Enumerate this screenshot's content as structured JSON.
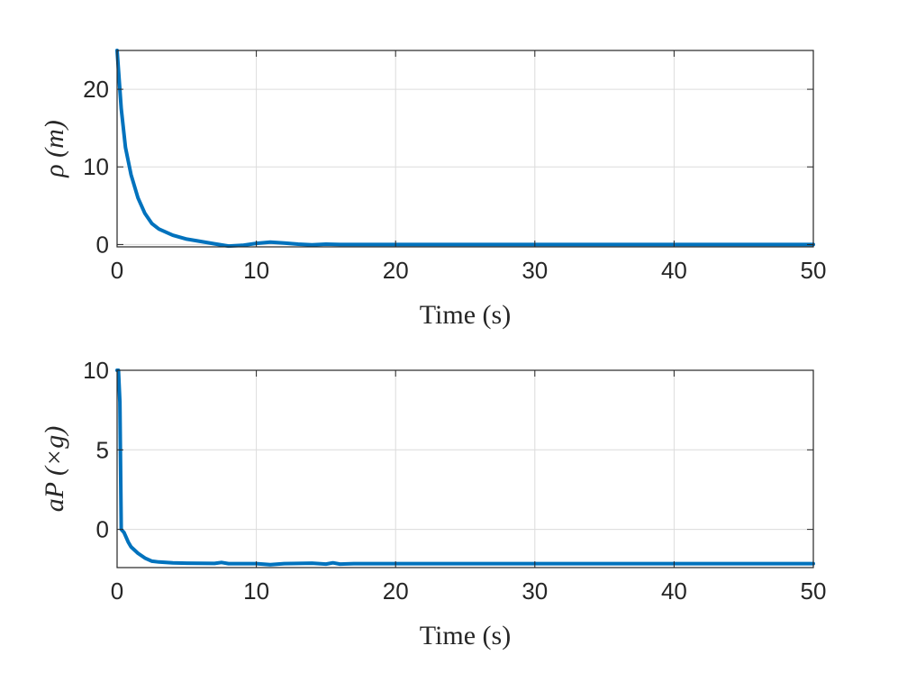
{
  "chart_data": [
    {
      "type": "line",
      "xlabel": "Time (s)",
      "ylabel": "ρ (m)",
      "xlim": [
        0,
        50
      ],
      "ylim": [
        -0.3,
        25
      ],
      "xticks": [
        0,
        10,
        20,
        30,
        40,
        50
      ],
      "yticks": [
        0,
        10,
        20
      ],
      "grid": true,
      "color": "#0072BD",
      "series": [
        {
          "x": [
            0,
            0.3,
            0.6,
            1,
            1.5,
            2,
            2.5,
            3,
            4,
            5,
            6,
            7,
            8,
            9,
            10,
            11,
            12,
            13,
            14,
            15,
            16,
            18,
            20,
            30,
            40,
            50
          ],
          "y": [
            25,
            17.5,
            12.5,
            9,
            6,
            4,
            2.7,
            2,
            1.2,
            0.7,
            0.4,
            0.1,
            -0.2,
            -0.1,
            0.15,
            0.3,
            0.2,
            0.05,
            -0.05,
            0.05,
            0,
            0,
            0,
            0,
            0,
            0
          ]
        }
      ]
    },
    {
      "type": "line",
      "xlabel": "Time (s)",
      "ylabel": "aP (×g)",
      "xlim": [
        0,
        50
      ],
      "ylim": [
        -2.4,
        10
      ],
      "xticks": [
        0,
        10,
        20,
        30,
        40,
        50
      ],
      "yticks": [
        0,
        5,
        10
      ],
      "grid": true,
      "color": "#0072BD",
      "series": [
        {
          "x": [
            0,
            0.1,
            0.2,
            0.3,
            0.5,
            0.8,
            1,
            1.5,
            2,
            2.5,
            3,
            4,
            5,
            7,
            7.5,
            8,
            10,
            11,
            12,
            14,
            15,
            15.5,
            16,
            17,
            18,
            20,
            30,
            40,
            50
          ],
          "y": [
            10,
            10,
            8,
            0,
            -0.2,
            -0.8,
            -1.1,
            -1.5,
            -1.8,
            -2.0,
            -2.05,
            -2.1,
            -2.12,
            -2.14,
            -2.08,
            -2.15,
            -2.15,
            -2.22,
            -2.15,
            -2.12,
            -2.18,
            -2.1,
            -2.18,
            -2.15,
            -2.15,
            -2.15,
            -2.15,
            -2.15,
            -2.15
          ]
        }
      ]
    }
  ]
}
